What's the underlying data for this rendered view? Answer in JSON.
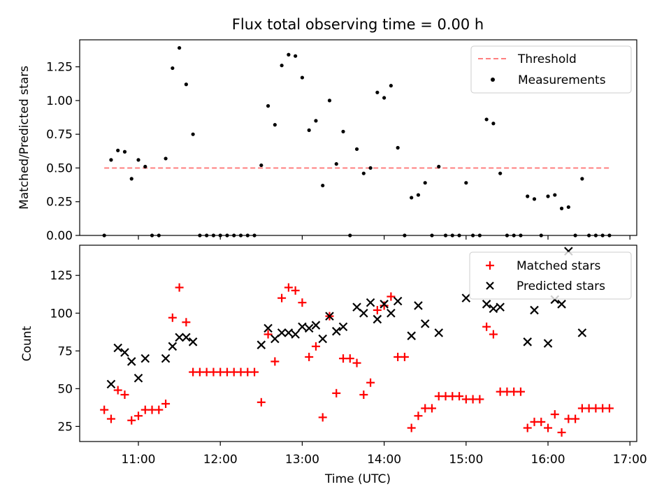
{
  "figure": {
    "title": "Flux total observing time = 0.00 h"
  },
  "chart_data": [
    {
      "type": "scatter",
      "title": "Flux total observing time = 0.00 h",
      "xlabel": "",
      "ylabel": "Matched/Predicted stars",
      "xlim": [
        "10:17",
        "17:05"
      ],
      "ylim": [
        0,
        1.45
      ],
      "yticks": [
        0.0,
        0.25,
        0.5,
        0.75,
        1.0,
        1.25
      ],
      "ytick_labels": [
        "0.00",
        "0.25",
        "0.50",
        "0.75",
        "1.00",
        "1.25"
      ],
      "legend_position": "top-right",
      "threshold": {
        "name": "Threshold",
        "value": 0.5,
        "x": [
          "10:35",
          "16:45"
        ],
        "color": "#ff7f7f",
        "style": "dashed"
      },
      "series": [
        {
          "name": "Measurements",
          "color": "#000000",
          "marker": "dot",
          "points": [
            [
              "10:35",
              0.0
            ],
            [
              "10:40",
              0.56
            ],
            [
              "10:45",
              0.63
            ],
            [
              "10:50",
              0.62
            ],
            [
              "10:55",
              0.42
            ],
            [
              "11:00",
              0.56
            ],
            [
              "11:05",
              0.51
            ],
            [
              "11:10",
              0.0
            ],
            [
              "11:15",
              0.0
            ],
            [
              "11:20",
              0.57
            ],
            [
              "11:25",
              1.24
            ],
            [
              "11:30",
              1.39
            ],
            [
              "11:35",
              1.12
            ],
            [
              "11:40",
              0.75
            ],
            [
              "11:45",
              0.0
            ],
            [
              "11:50",
              0.0
            ],
            [
              "11:55",
              0.0
            ],
            [
              "12:00",
              0.0
            ],
            [
              "12:05",
              0.0
            ],
            [
              "12:10",
              0.0
            ],
            [
              "12:15",
              0.0
            ],
            [
              "12:20",
              0.0
            ],
            [
              "12:25",
              0.0
            ],
            [
              "12:30",
              0.52
            ],
            [
              "12:35",
              0.96
            ],
            [
              "12:40",
              0.82
            ],
            [
              "12:45",
              1.26
            ],
            [
              "12:50",
              1.34
            ],
            [
              "12:55",
              1.33
            ],
            [
              "13:00",
              1.17
            ],
            [
              "13:05",
              0.78
            ],
            [
              "13:10",
              0.85
            ],
            [
              "13:15",
              0.37
            ],
            [
              "13:20",
              1.0
            ],
            [
              "13:25",
              0.53
            ],
            [
              "13:30",
              0.77
            ],
            [
              "13:35",
              0.0
            ],
            [
              "13:40",
              0.64
            ],
            [
              "13:45",
              0.46
            ],
            [
              "13:50",
              0.5
            ],
            [
              "13:55",
              1.06
            ],
            [
              "14:00",
              1.02
            ],
            [
              "14:05",
              1.11
            ],
            [
              "14:10",
              0.65
            ],
            [
              "14:15",
              0.0
            ],
            [
              "14:20",
              0.28
            ],
            [
              "14:25",
              0.3
            ],
            [
              "14:30",
              0.39
            ],
            [
              "14:35",
              0.0
            ],
            [
              "14:40",
              0.51
            ],
            [
              "14:45",
              0.0
            ],
            [
              "14:50",
              0.0
            ],
            [
              "14:55",
              0.0
            ],
            [
              "15:00",
              0.39
            ],
            [
              "15:05",
              0.0
            ],
            [
              "15:10",
              0.0
            ],
            [
              "15:15",
              0.86
            ],
            [
              "15:20",
              0.83
            ],
            [
              "15:25",
              0.46
            ],
            [
              "15:30",
              0.0
            ],
            [
              "15:35",
              0.0
            ],
            [
              "15:40",
              0.0
            ],
            [
              "15:45",
              0.29
            ],
            [
              "15:50",
              0.27
            ],
            [
              "15:55",
              0.0
            ],
            [
              "16:00",
              0.29
            ],
            [
              "16:05",
              0.3
            ],
            [
              "16:10",
              0.2
            ],
            [
              "16:15",
              0.21
            ],
            [
              "16:20",
              0.0
            ],
            [
              "16:25",
              0.42
            ],
            [
              "16:30",
              0.0
            ],
            [
              "16:35",
              0.0
            ],
            [
              "16:40",
              0.0
            ],
            [
              "16:45",
              0.0
            ]
          ]
        }
      ]
    },
    {
      "type": "scatter",
      "title": "",
      "xlabel": "Time (UTC)",
      "ylabel": "Count",
      "xlim": [
        "10:17",
        "17:05"
      ],
      "ylim": [
        15,
        145
      ],
      "xticks": [
        "11:00",
        "12:00",
        "13:00",
        "14:00",
        "15:00",
        "16:00",
        "17:00"
      ],
      "yticks": [
        25,
        50,
        75,
        100,
        125
      ],
      "ytick_labels": [
        "25",
        "50",
        "75",
        "100",
        "125"
      ],
      "legend_position": "top-right",
      "series": [
        {
          "name": "Matched stars",
          "color": "#ff0000",
          "marker": "plus",
          "points": [
            [
              "10:35",
              36
            ],
            [
              "10:40",
              30
            ],
            [
              "10:45",
              49
            ],
            [
              "10:50",
              46
            ],
            [
              "10:55",
              29
            ],
            [
              "11:00",
              32
            ],
            [
              "11:05",
              36
            ],
            [
              "11:10",
              36
            ],
            [
              "11:15",
              36
            ],
            [
              "11:20",
              40
            ],
            [
              "11:25",
              97
            ],
            [
              "11:30",
              117
            ],
            [
              "11:35",
              94
            ],
            [
              "11:40",
              61
            ],
            [
              "11:45",
              61
            ],
            [
              "11:50",
              61
            ],
            [
              "11:55",
              61
            ],
            [
              "12:00",
              61
            ],
            [
              "12:05",
              61
            ],
            [
              "12:10",
              61
            ],
            [
              "12:15",
              61
            ],
            [
              "12:20",
              61
            ],
            [
              "12:25",
              61
            ],
            [
              "12:30",
              41
            ],
            [
              "12:35",
              86
            ],
            [
              "12:40",
              68
            ],
            [
              "12:45",
              110
            ],
            [
              "12:50",
              117
            ],
            [
              "12:55",
              115
            ],
            [
              "13:00",
              107
            ],
            [
              "13:05",
              71
            ],
            [
              "13:10",
              78
            ],
            [
              "13:15",
              31
            ],
            [
              "13:20",
              98
            ],
            [
              "13:25",
              47
            ],
            [
              "13:30",
              70
            ],
            [
              "13:35",
              70
            ],
            [
              "13:40",
              67
            ],
            [
              "13:45",
              46
            ],
            [
              "13:50",
              54
            ],
            [
              "13:55",
              102
            ],
            [
              "14:00",
              105
            ],
            [
              "14:05",
              111
            ],
            [
              "14:10",
              71
            ],
            [
              "14:15",
              71
            ],
            [
              "14:20",
              24
            ],
            [
              "14:25",
              32
            ],
            [
              "14:30",
              37
            ],
            [
              "14:35",
              37
            ],
            [
              "14:40",
              45
            ],
            [
              "14:45",
              45
            ],
            [
              "14:50",
              45
            ],
            [
              "14:55",
              45
            ],
            [
              "15:00",
              43
            ],
            [
              "15:05",
              43
            ],
            [
              "15:10",
              43
            ],
            [
              "15:15",
              91
            ],
            [
              "15:20",
              86
            ],
            [
              "15:25",
              48
            ],
            [
              "15:30",
              48
            ],
            [
              "15:35",
              48
            ],
            [
              "15:40",
              48
            ],
            [
              "15:45",
              24
            ],
            [
              "15:50",
              28
            ],
            [
              "15:55",
              28
            ],
            [
              "16:00",
              24
            ],
            [
              "16:05",
              33
            ],
            [
              "16:10",
              21
            ],
            [
              "16:15",
              30
            ],
            [
              "16:20",
              30
            ],
            [
              "16:25",
              37
            ],
            [
              "16:30",
              37
            ],
            [
              "16:35",
              37
            ],
            [
              "16:40",
              37
            ],
            [
              "16:45",
              37
            ]
          ]
        },
        {
          "name": "Predicted stars",
          "color": "#000000",
          "marker": "x",
          "points": [
            [
              "10:40",
              53
            ],
            [
              "10:45",
              77
            ],
            [
              "10:50",
              74
            ],
            [
              "10:55",
              68
            ],
            [
              "11:00",
              57
            ],
            [
              "11:05",
              70
            ],
            [
              "11:20",
              70
            ],
            [
              "11:25",
              78
            ],
            [
              "11:30",
              84
            ],
            [
              "11:35",
              84
            ],
            [
              "11:40",
              81
            ],
            [
              "12:30",
              79
            ],
            [
              "12:35",
              90
            ],
            [
              "12:40",
              83
            ],
            [
              "12:45",
              87
            ],
            [
              "12:50",
              87
            ],
            [
              "12:55",
              86
            ],
            [
              "13:00",
              91
            ],
            [
              "13:05",
              90
            ],
            [
              "13:10",
              92
            ],
            [
              "13:15",
              83
            ],
            [
              "13:20",
              98
            ],
            [
              "13:25",
              88
            ],
            [
              "13:30",
              91
            ],
            [
              "13:40",
              104
            ],
            [
              "13:45",
              100
            ],
            [
              "13:50",
              107
            ],
            [
              "13:55",
              96
            ],
            [
              "14:00",
              106
            ],
            [
              "14:05",
              100
            ],
            [
              "14:10",
              108
            ],
            [
              "14:20",
              85
            ],
            [
              "14:25",
              105
            ],
            [
              "14:30",
              93
            ],
            [
              "14:40",
              87
            ],
            [
              "15:00",
              110
            ],
            [
              "15:15",
              106
            ],
            [
              "15:20",
              103
            ],
            [
              "15:25",
              104
            ],
            [
              "15:45",
              81
            ],
            [
              "15:50",
              102
            ],
            [
              "16:00",
              80
            ],
            [
              "16:05",
              109
            ],
            [
              "16:10",
              106
            ],
            [
              "16:15",
              141
            ],
            [
              "16:25",
              87
            ]
          ]
        }
      ]
    }
  ]
}
